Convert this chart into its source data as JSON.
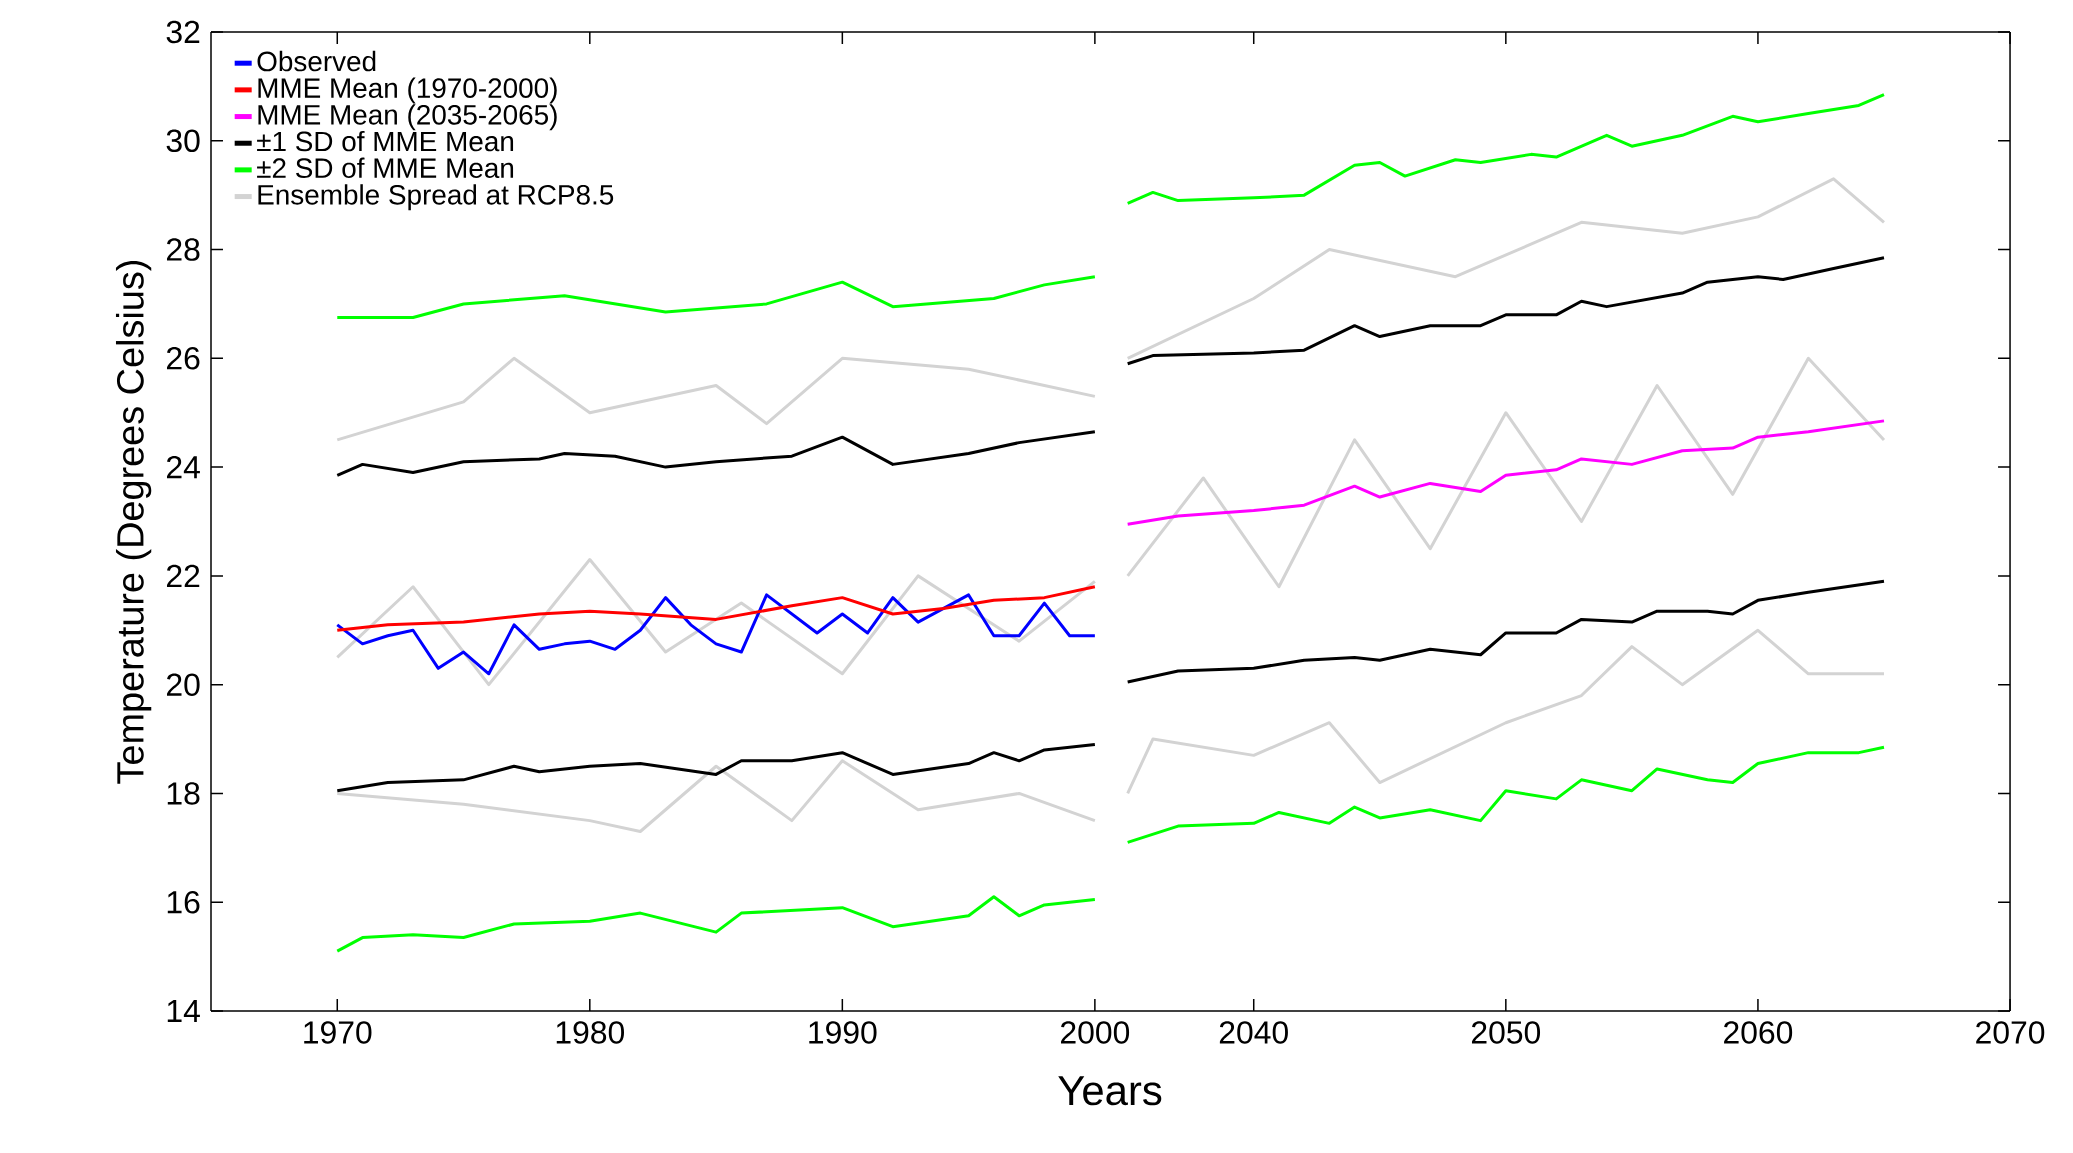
{
  "chart_data": [
    {
      "type": "line",
      "ylabel": "Temperature (Degrees Celsius)",
      "xlabel": "Years",
      "xlim": [
        1965,
        2000.6
      ],
      "xticks": [
        1970,
        1980,
        1990,
        2000
      ],
      "ylim": [
        14,
        32
      ],
      "yticks": [
        14,
        16,
        18,
        20,
        22,
        24,
        26,
        28,
        30,
        32
      ],
      "legend": "top left",
      "series": [
        {
          "color": "#d3d3d3",
          "x": [
            1970,
            1975,
            1977,
            1980,
            1985,
            1987,
            1990,
            1995,
            2000
          ],
          "values": [
            24.5,
            25.2,
            26.0,
            25.0,
            25.5,
            24.8,
            26.0,
            25.8,
            25.3
          ]
        },
        {
          "color": "#d3d3d3",
          "x": [
            1970,
            1973,
            1976,
            1980,
            1983,
            1986,
            1990,
            1993,
            1997,
            2000
          ],
          "values": [
            20.5,
            21.8,
            20.0,
            22.3,
            20.6,
            21.5,
            20.2,
            22.0,
            20.8,
            21.9
          ]
        },
        {
          "color": "#d3d3d3",
          "x": [
            1970,
            1975,
            1980,
            1982,
            1985,
            1988,
            1990,
            1993,
            1997,
            2000
          ],
          "values": [
            18.0,
            17.8,
            17.5,
            17.3,
            18.5,
            17.5,
            18.6,
            17.7,
            18.0,
            17.5
          ]
        },
        {
          "color": "#00ff00",
          "x": [
            1970,
            1973,
            1975,
            1979,
            1983,
            1987,
            1990,
            1992,
            1996,
            1998,
            2000
          ],
          "values": [
            26.75,
            26.75,
            27.0,
            27.15,
            26.85,
            27.0,
            27.4,
            26.95,
            27.1,
            27.35,
            27.5
          ]
        },
        {
          "color": "#000000",
          "x": [
            1970,
            1971,
            1973,
            1975,
            1978,
            1979,
            1981,
            1983,
            1985,
            1988,
            1990,
            1992,
            1995,
            1997,
            2000
          ],
          "values": [
            23.85,
            24.05,
            23.9,
            24.1,
            24.15,
            24.25,
            24.2,
            24.0,
            24.1,
            24.2,
            24.55,
            24.05,
            24.25,
            24.45,
            24.65
          ]
        },
        {
          "color": "#000000",
          "x": [
            1970,
            1972,
            1975,
            1977,
            1978,
            1980,
            1982,
            1985,
            1986,
            1988,
            1990,
            1992,
            1995,
            1996,
            1997,
            1998,
            2000
          ],
          "values": [
            18.05,
            18.2,
            18.25,
            18.5,
            18.4,
            18.5,
            18.55,
            18.35,
            18.6,
            18.6,
            18.75,
            18.35,
            18.55,
            18.75,
            18.6,
            18.8,
            18.9
          ]
        },
        {
          "color": "#00ff00",
          "x": [
            1970,
            1971,
            1973,
            1975,
            1977,
            1980,
            1982,
            1985,
            1986,
            1990,
            1992,
            1995,
            1996,
            1997,
            1998,
            2000
          ],
          "values": [
            15.1,
            15.35,
            15.4,
            15.35,
            15.6,
            15.65,
            15.8,
            15.45,
            15.8,
            15.9,
            15.55,
            15.75,
            16.1,
            15.75,
            15.95,
            16.05
          ]
        },
        {
          "name": "Observed",
          "color": "#0000ff",
          "x": [
            1970,
            1971,
            1972,
            1973,
            1974,
            1975,
            1976,
            1977,
            1978,
            1979,
            1980,
            1981,
            1982,
            1983,
            1984,
            1985,
            1986,
            1987,
            1988,
            1989,
            1990,
            1991,
            1992,
            1993,
            1994,
            1995,
            1996,
            1997,
            1998,
            1999,
            2000
          ],
          "values": [
            21.1,
            20.75,
            20.9,
            21.0,
            20.3,
            20.6,
            20.2,
            21.1,
            20.65,
            20.75,
            20.8,
            20.65,
            21.0,
            21.6,
            21.1,
            20.75,
            20.6,
            21.65,
            21.3,
            20.95,
            21.3,
            20.95,
            21.6,
            21.15,
            21.4,
            21.65,
            20.9,
            20.9,
            21.5,
            20.9,
            20.9
          ]
        },
        {
          "name": "MME Mean (1970-2000)",
          "color": "#ff0000",
          "x": [
            1970,
            1972,
            1975,
            1978,
            1980,
            1982,
            1985,
            1988,
            1990,
            1992,
            1994,
            1996,
            1998,
            2000
          ],
          "values": [
            21.0,
            21.1,
            21.15,
            21.3,
            21.35,
            21.3,
            21.2,
            21.45,
            21.6,
            21.3,
            21.4,
            21.55,
            21.6,
            21.8
          ]
        }
      ]
    },
    {
      "type": "line",
      "xlim": [
        2034.3,
        2070
      ],
      "xticks": [
        2040,
        2050,
        2060,
        2070
      ],
      "ylim": [
        14,
        32
      ],
      "yticks": [
        14,
        16,
        18,
        20,
        22,
        24,
        26,
        28,
        30,
        32
      ],
      "tick_labels": "x",
      "series": [
        {
          "color": "#d3d3d3",
          "x": [
            2035,
            2038,
            2041,
            2044,
            2047,
            2050,
            2053,
            2056,
            2059,
            2062,
            2065
          ],
          "values": [
            22.0,
            23.8,
            21.8,
            24.5,
            22.5,
            25.0,
            23.0,
            25.5,
            23.5,
            26.0,
            24.5
          ]
        },
        {
          "color": "#d3d3d3",
          "x": [
            2035,
            2036,
            2040,
            2043,
            2045,
            2050,
            2053,
            2055,
            2057,
            2060,
            2062,
            2065
          ],
          "values": [
            18.0,
            19.0,
            18.7,
            19.3,
            18.2,
            19.3,
            19.8,
            20.7,
            20.0,
            21.0,
            20.2,
            20.2
          ]
        },
        {
          "name": "MME Mean (2035-2065)",
          "color": "#ff00ff",
          "x": [
            2035,
            2037,
            2040,
            2042,
            2044,
            2045,
            2047,
            2049,
            2050,
            2052,
            2053,
            2055,
            2057,
            2059,
            2060,
            2062,
            2065
          ],
          "values": [
            22.95,
            23.1,
            23.2,
            23.3,
            23.65,
            23.45,
            23.7,
            23.55,
            23.85,
            23.95,
            24.15,
            24.05,
            24.3,
            24.35,
            24.55,
            24.65,
            24.85
          ]
        },
        {
          "name": "±1 SD of MME Mean",
          "color": "#000000",
          "x": [
            2035,
            2036,
            2040,
            2042,
            2044,
            2045,
            2047,
            2049,
            2050,
            2052,
            2053,
            2054,
            2057,
            2058,
            2060,
            2061,
            2063,
            2065
          ],
          "values": [
            25.9,
            26.05,
            26.1,
            26.15,
            26.6,
            26.4,
            26.6,
            26.6,
            26.8,
            26.8,
            27.05,
            26.95,
            27.2,
            27.4,
            27.5,
            27.45,
            27.65,
            27.85
          ]
        },
        {
          "color": "#000000",
          "x": [
            2035,
            2037,
            2040,
            2042,
            2044,
            2045,
            2047,
            2049,
            2050,
            2052,
            2053,
            2055,
            2056,
            2058,
            2059,
            2060,
            2062,
            2065
          ],
          "values": [
            20.05,
            20.25,
            20.3,
            20.45,
            20.5,
            20.45,
            20.65,
            20.55,
            20.95,
            20.95,
            21.2,
            21.15,
            21.35,
            21.35,
            21.3,
            21.55,
            21.7,
            21.9
          ]
        },
        {
          "name": "±2 SD of MME Mean",
          "color": "#00ff00",
          "x": [
            2035,
            2036,
            2037,
            2040,
            2042,
            2044,
            2045,
            2046,
            2048,
            2049,
            2051,
            2052,
            2054,
            2055,
            2057,
            2059,
            2060,
            2062,
            2064,
            2065
          ],
          "values": [
            28.85,
            29.05,
            28.9,
            28.95,
            29.0,
            29.55,
            29.6,
            29.35,
            29.65,
            29.6,
            29.75,
            29.7,
            30.1,
            29.9,
            30.1,
            30.45,
            30.35,
            30.5,
            30.65,
            30.85
          ]
        },
        {
          "color": "#00ff00",
          "x": [
            2035,
            2037,
            2040,
            2041,
            2043,
            2044,
            2045,
            2047,
            2049,
            2050,
            2052,
            2053,
            2055,
            2056,
            2058,
            2059,
            2060,
            2062,
            2064,
            2065
          ],
          "values": [
            17.1,
            17.4,
            17.45,
            17.65,
            17.45,
            17.75,
            17.55,
            17.7,
            17.5,
            18.05,
            17.9,
            18.25,
            18.05,
            18.45,
            18.25,
            18.2,
            18.55,
            18.75,
            18.75,
            18.85
          ]
        },
        {
          "name": "Ensemble Spread at RCP8.5",
          "color": "#d3d3d3",
          "x": [
            2035,
            2040,
            2043,
            2048,
            2053,
            2057,
            2060,
            2063,
            2065
          ],
          "values": [
            26.0,
            27.1,
            28.0,
            27.5,
            28.5,
            28.3,
            28.6,
            29.3,
            28.5
          ]
        }
      ]
    }
  ]
}
